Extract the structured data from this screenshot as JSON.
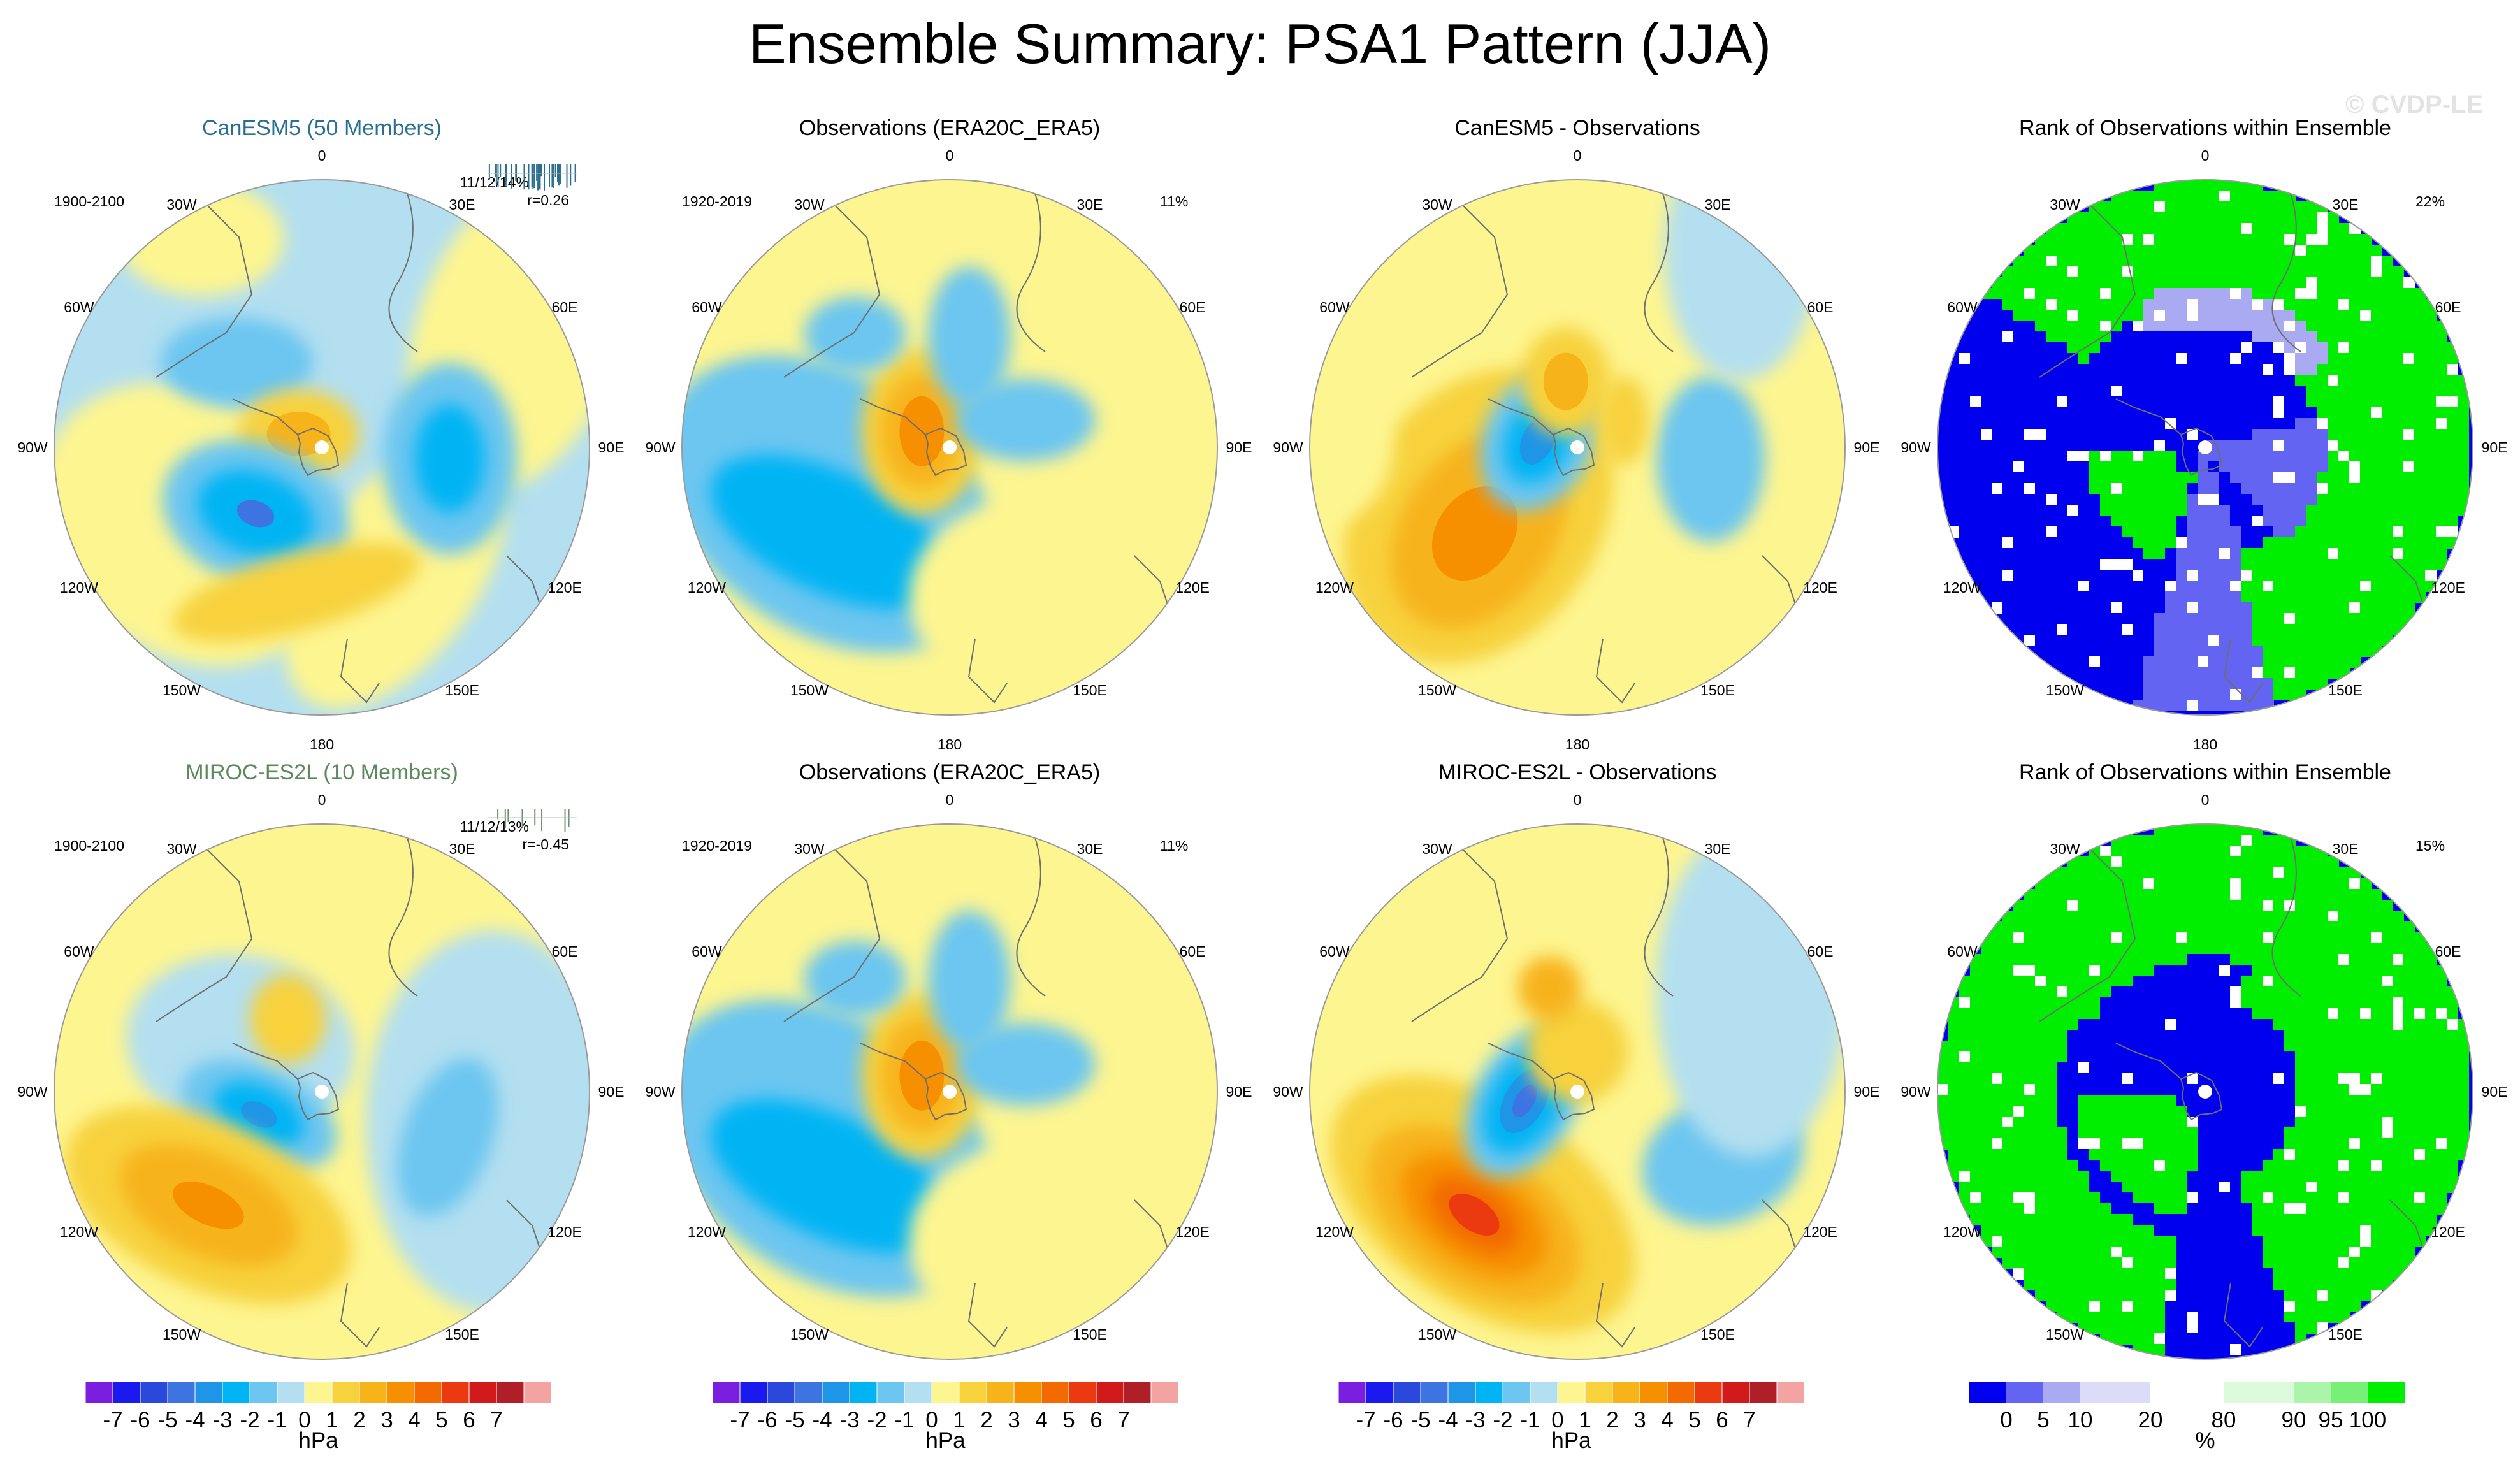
{
  "title": "Ensemble Summary: PSA1 Pattern (JJA)",
  "watermark": "© CVDP-LE",
  "rows": [
    {
      "panels": [
        {
          "title": "CanESM5 (50 Members)",
          "title_color": "#2a6f8f",
          "period": "1900-2100",
          "stats_line1": "11/12/14%",
          "stats_line2": "r=0.26",
          "pct": ""
        },
        {
          "title": "Observations (ERA20C_ERA5)",
          "title_color": "#000000",
          "period": "1920-2019",
          "stats_line1": "",
          "stats_line2": "",
          "pct": "11%"
        },
        {
          "title": "CanESM5 - Observations",
          "title_color": "#000000",
          "period": "",
          "stats_line1": "",
          "stats_line2": "",
          "pct": ""
        },
        {
          "title": "Rank of Observations within Ensemble",
          "title_color": "#000000",
          "period": "",
          "stats_line1": "",
          "stats_line2": "",
          "pct": "22%"
        }
      ]
    },
    {
      "panels": [
        {
          "title": "MIROC-ES2L (10 Members)",
          "title_color": "#5d8a5d",
          "period": "1900-2100",
          "stats_line1": "11/12/13%",
          "stats_line2": "r=-0.45",
          "pct": ""
        },
        {
          "title": "Observations (ERA20C_ERA5)",
          "title_color": "#000000",
          "period": "1920-2019",
          "stats_line1": "",
          "stats_line2": "",
          "pct": "11%"
        },
        {
          "title": "MIROC-ES2L - Observations",
          "title_color": "#000000",
          "period": "",
          "stats_line1": "",
          "stats_line2": "",
          "pct": ""
        },
        {
          "title": "Rank of Observations within Ensemble",
          "title_color": "#000000",
          "period": "",
          "stats_line1": "",
          "stats_line2": "",
          "pct": "15%"
        }
      ]
    }
  ],
  "longitude_labels": [
    "0",
    "30E",
    "60E",
    "90E",
    "120E",
    "150E",
    "180",
    "150W",
    "120W",
    "90W",
    "60W",
    "30W"
  ],
  "colorbars": {
    "hpa": {
      "units": "hPa",
      "tick_labels": [
        "-7",
        "-6",
        "-5",
        "-4",
        "-3",
        "-2",
        "-1",
        "0",
        "1",
        "2",
        "3",
        "4",
        "5",
        "6",
        "7"
      ],
      "colors": [
        "#7a1fe0",
        "#1a1aee",
        "#2a48dc",
        "#3d74e2",
        "#1f95e8",
        "#00b4f4",
        "#6cc6f0",
        "#b3dff0",
        "#fdf590",
        "#f7d23c",
        "#f7b31a",
        "#f79000",
        "#f26a00",
        "#ec3a10",
        "#d21a1a",
        "#b01e28",
        "#f4a3a3"
      ]
    },
    "rank": {
      "units": "%",
      "tick_labels": [
        "0",
        "5",
        "10",
        "20",
        "80",
        "90",
        "95",
        "100"
      ],
      "colors": [
        "#0000ee",
        "#6464f2",
        "#aaaaf2",
        "#dcdcf8",
        "#ffffff",
        "#ddfadd",
        "#aaf5aa",
        "#78f078",
        "#00ee00"
      ]
    }
  },
  "chart_data": [
    {
      "type": "heatmap",
      "panel": "CanESM5 (50 Members) PSA1 pattern",
      "units": "hPa",
      "period": "1900-2100",
      "stats": "11/12/14%",
      "r": 0.26,
      "centers": [
        {
          "sign": "negative",
          "lon": "135W",
          "value": -3
        },
        {
          "sign": "negative",
          "lon": "95E",
          "value": -3
        },
        {
          "sign": "negative",
          "lon": "30W",
          "value": -1
        },
        {
          "sign": "positive",
          "lon": "75W",
          "value": 1
        },
        {
          "sign": "positive",
          "lon": "165W",
          "value": 1
        }
      ]
    },
    {
      "type": "heatmap",
      "panel": "Observations (ERA20C_ERA5)",
      "units": "hPa",
      "period": "1920-2019",
      "pct": "11%",
      "centers": [
        {
          "sign": "positive",
          "lon": "65W",
          "value": 3
        },
        {
          "sign": "negative",
          "lon": "130W",
          "value": -3
        },
        {
          "sign": "negative",
          "lon": "20E",
          "value": -1
        }
      ]
    },
    {
      "type": "heatmap",
      "panel": "CanESM5 - Observations",
      "units": "hPa",
      "centers": [
        {
          "sign": "negative",
          "lon": "75W",
          "value": -4
        },
        {
          "sign": "positive",
          "lon": "130W",
          "value": 3
        },
        {
          "sign": "positive",
          "lon": "20W",
          "value": 2
        },
        {
          "sign": "negative",
          "lon": "95E",
          "value": -1
        }
      ]
    },
    {
      "type": "heatmap",
      "panel": "Rank of Observations within Ensemble (CanESM5)",
      "units": "%",
      "pct": "22%"
    },
    {
      "type": "heatmap",
      "panel": "MIROC-ES2L (10 Members) PSA1 pattern",
      "units": "hPa",
      "period": "1900-2100",
      "stats": "11/12/13%",
      "r": -0.45,
      "centers": [
        {
          "sign": "negative",
          "lon": "110W",
          "value": -3
        },
        {
          "sign": "positive",
          "lon": "130W",
          "value": 3
        },
        {
          "sign": "negative",
          "lon": "110E",
          "value": -1
        },
        {
          "sign": "positive",
          "lon": "30W",
          "value": 1
        }
      ]
    },
    {
      "type": "heatmap",
      "panel": "Observations (ERA20C_ERA5)",
      "units": "hPa",
      "period": "1920-2019",
      "pct": "11%",
      "centers": [
        {
          "sign": "positive",
          "lon": "65W",
          "value": 3
        },
        {
          "sign": "negative",
          "lon": "130W",
          "value": -3
        },
        {
          "sign": "negative",
          "lon": "20E",
          "value": -1
        }
      ]
    },
    {
      "type": "heatmap",
      "panel": "MIROC-ES2L - Observations",
      "units": "hPa",
      "centers": [
        {
          "sign": "negative",
          "lon": "90W",
          "value": -5
        },
        {
          "sign": "positive",
          "lon": "130W",
          "value": 5
        },
        {
          "sign": "negative",
          "lon": "130E",
          "value": -1
        }
      ]
    },
    {
      "type": "heatmap",
      "panel": "Rank of Observations within Ensemble (MIROC-ES2L)",
      "units": "%",
      "pct": "15%"
    }
  ]
}
